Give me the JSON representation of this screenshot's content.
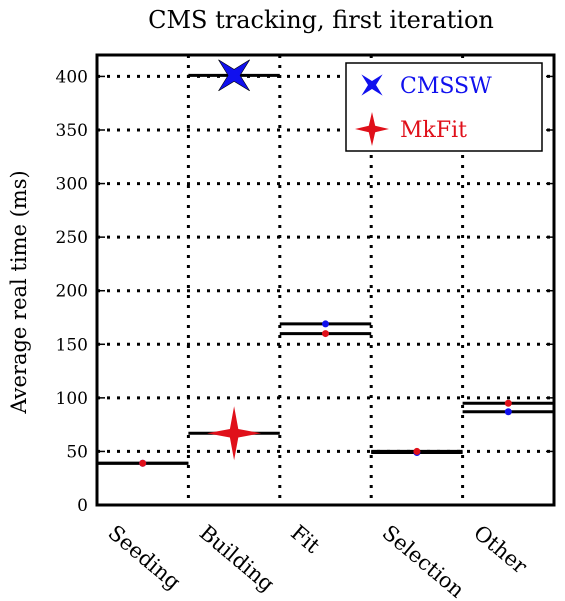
{
  "chart_data": {
    "type": "scatter",
    "title": "CMS tracking, first iteration",
    "xlabel": "",
    "ylabel": "Average real time (ms)",
    "categories": [
      "Seeding",
      "Building",
      "Fit",
      "Selection",
      "Other"
    ],
    "ylim": [
      0,
      420
    ],
    "yticks": [
      0,
      50,
      100,
      150,
      200,
      250,
      300,
      350,
      400
    ],
    "grid": true,
    "legend_position": "top-right",
    "series": [
      {
        "name": "CMSSW",
        "color": "#1010ee",
        "marker": "x-star",
        "values": [
          39,
          401,
          169,
          49,
          87
        ]
      },
      {
        "name": "MkFit",
        "color": "#e0101a",
        "marker": "4-point-star",
        "values": [
          39,
          67,
          160,
          50,
          95
        ]
      }
    ]
  }
}
